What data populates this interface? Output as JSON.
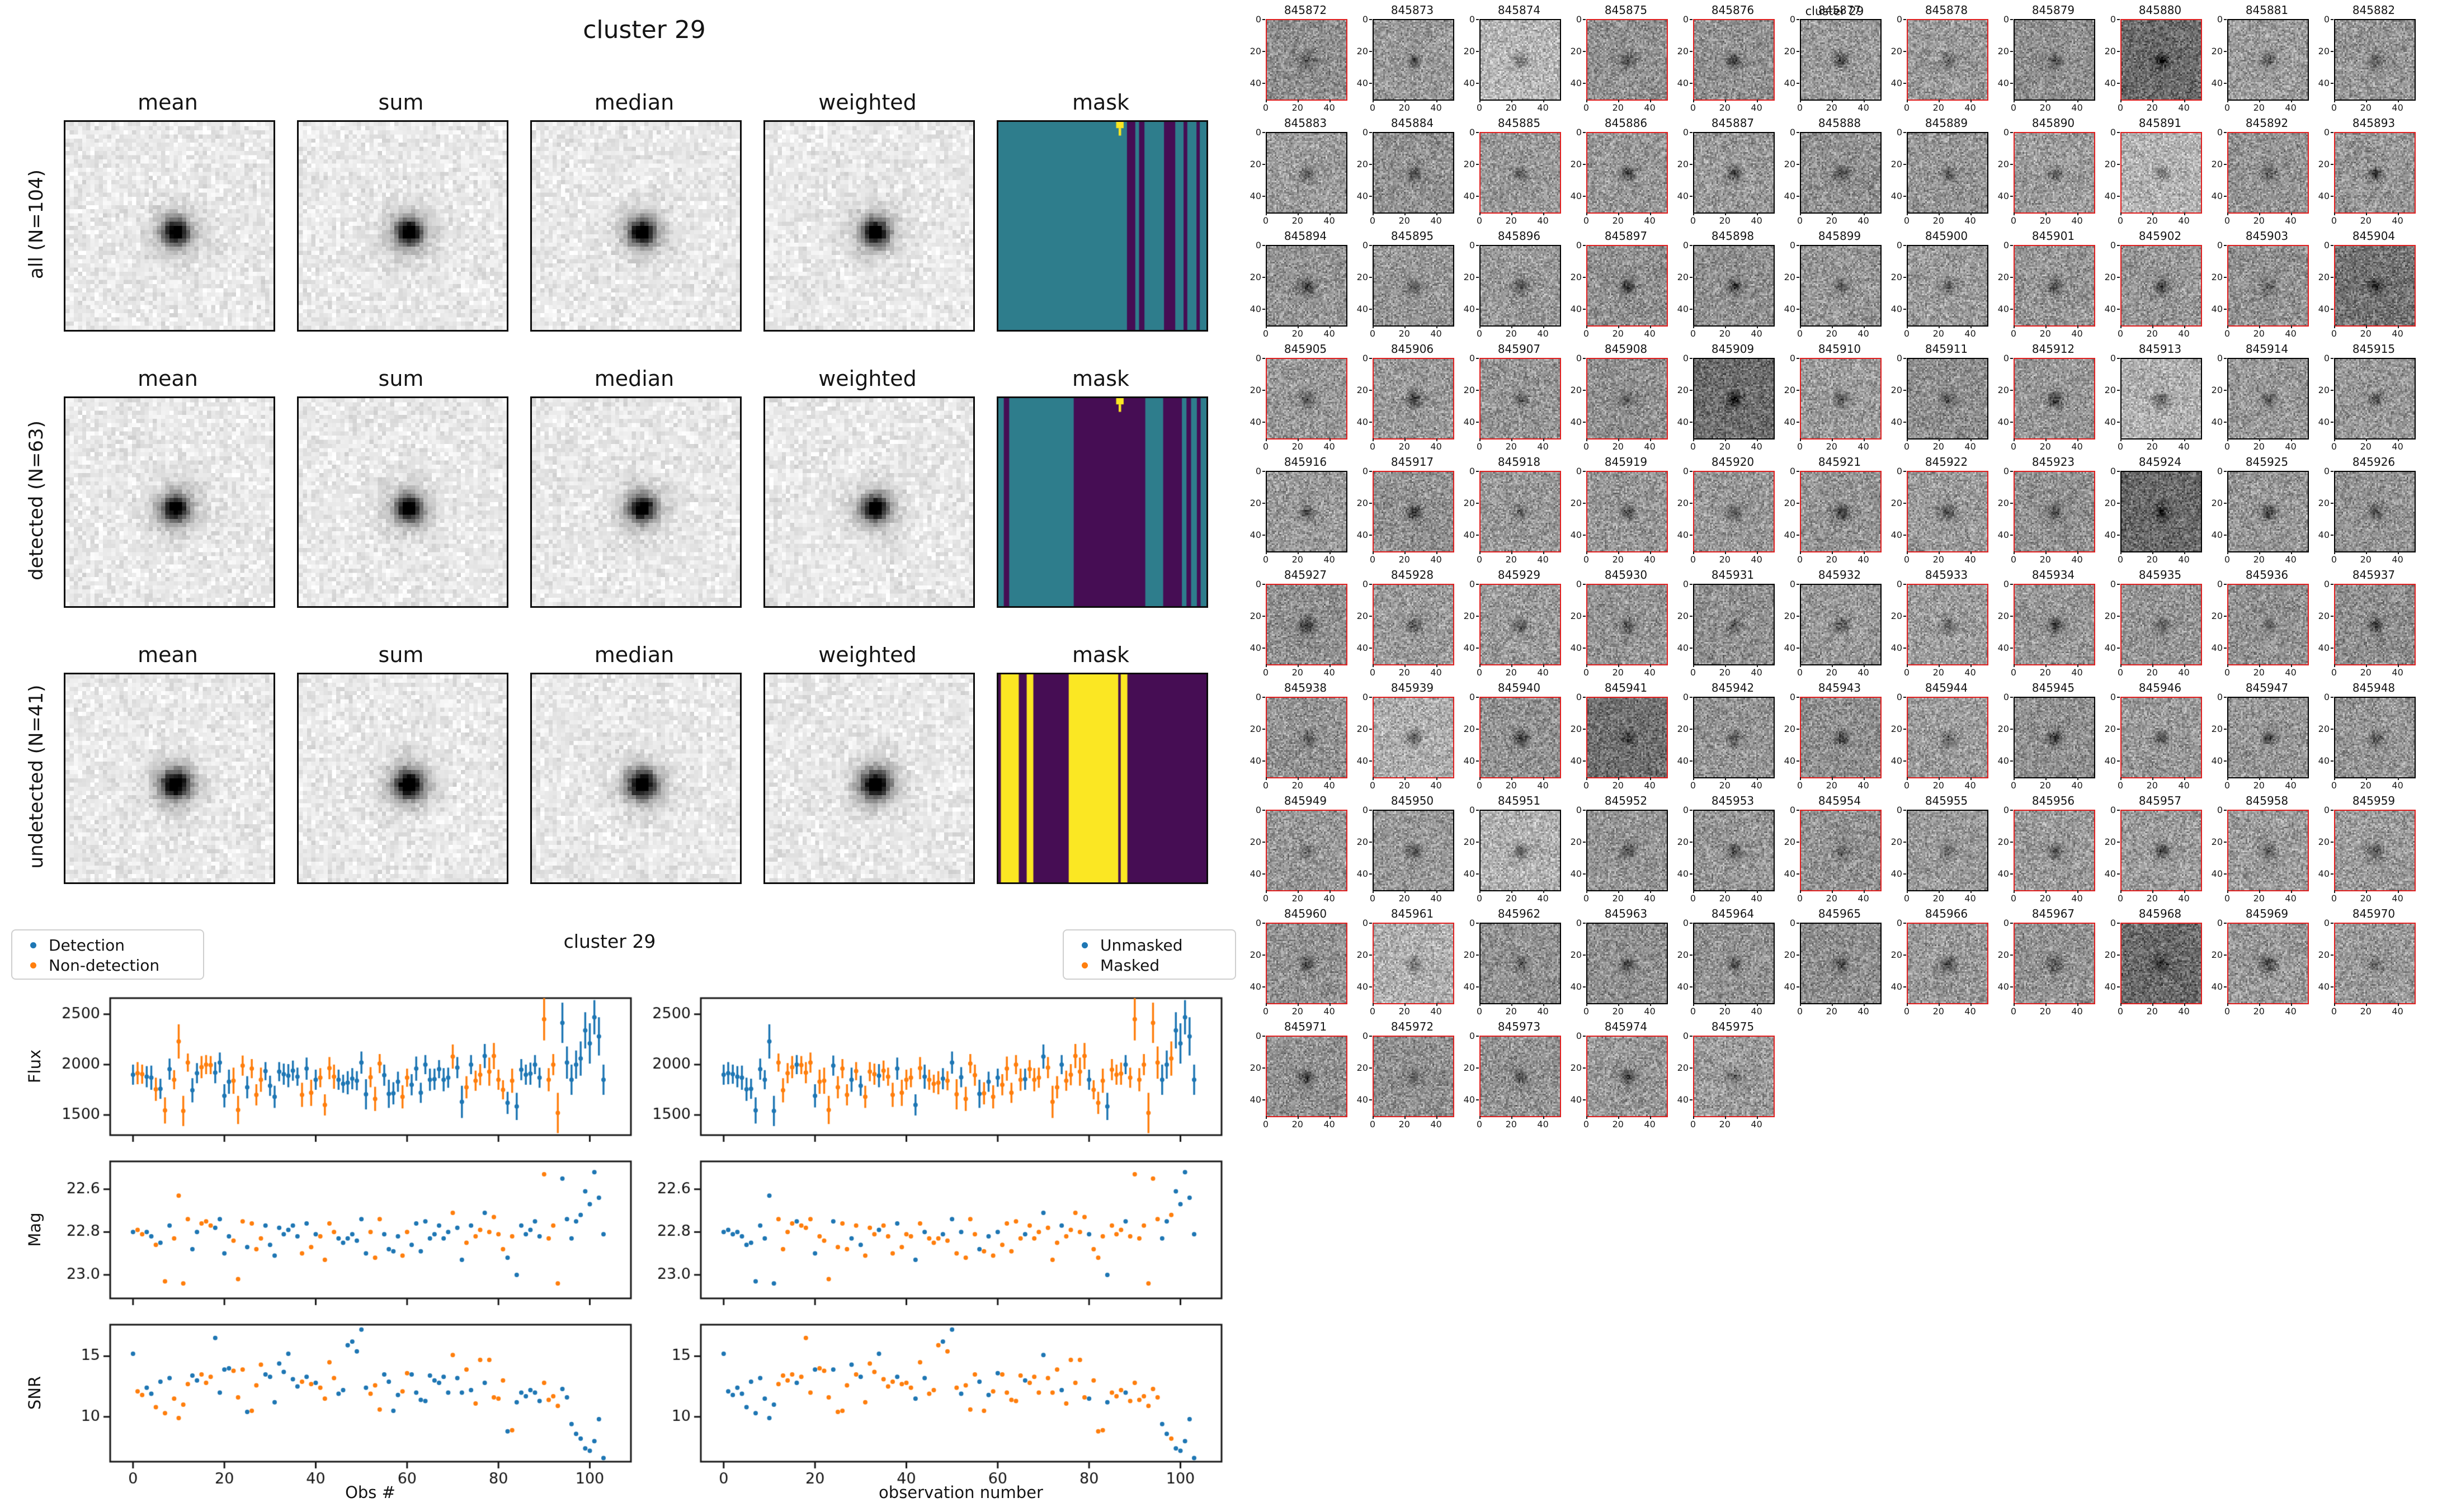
{
  "stack_figure": {
    "title": "cluster 29",
    "col_headers": [
      "mean",
      "sum",
      "median",
      "weighted",
      "mask"
    ],
    "rows": [
      {
        "label": "all (N=104)"
      },
      {
        "label": "detected (N=63)"
      },
      {
        "label": "undetected (N=41)"
      }
    ],
    "palette": {
      "teal": "#2e7d8c",
      "purple": "#460d54",
      "yellow": "#fbe723"
    },
    "masks": [
      {
        "bg": "teal",
        "stripe_color": "purple",
        "stripes": [
          [
            30.9,
            32.9
          ],
          [
            33.8,
            35.1
          ],
          [
            39.8,
            42.5
          ],
          [
            44.5,
            45.4
          ],
          [
            47.6,
            48.4
          ]
        ],
        "marker": true
      },
      {
        "bg": "teal",
        "stripe_color": "purple",
        "stripes": [
          [
            1.3,
            2.6
          ],
          [
            18.1,
            35.3
          ],
          [
            39.6,
            44.1
          ],
          [
            45.2,
            46.3
          ],
          [
            47.7,
            48.6
          ]
        ],
        "marker": true
      },
      {
        "bg": "purple",
        "stripe_color": "yellow",
        "stripes": [
          [
            0.6,
            4.9
          ],
          [
            6.8,
            8.4
          ],
          [
            16.9,
            28.8
          ],
          [
            29.4,
            31.0
          ]
        ],
        "marker": false
      }
    ],
    "noise": {
      "bg": 233,
      "noise": 14,
      "amp": 235,
      "sig": 2.1,
      "halo": 55,
      "hsig": 4.4
    }
  },
  "thumbnail_grid": {
    "suptitle": "cluster 29",
    "cols": 11,
    "ticks": [
      0,
      20,
      40
    ],
    "border_red": "#e01f1f",
    "border_black": "#000000",
    "noise": {
      "bg": 150,
      "noise": 30,
      "amp": 72,
      "sig": 2.7
    },
    "ids": [
      845872,
      845873,
      845874,
      845875,
      845876,
      845877,
      845878,
      845879,
      845880,
      845881,
      845882,
      845883,
      845884,
      845885,
      845886,
      845887,
      845888,
      845889,
      845890,
      845891,
      845892,
      845893,
      845894,
      845895,
      845896,
      845897,
      845898,
      845899,
      845900,
      845901,
      845902,
      845903,
      845904,
      845905,
      845906,
      845907,
      845908,
      845909,
      845910,
      845911,
      845912,
      845913,
      845914,
      845915,
      845916,
      845917,
      845918,
      845919,
      845920,
      845921,
      845922,
      845923,
      845924,
      845925,
      845926,
      845927,
      845928,
      845929,
      845930,
      845931,
      845932,
      845933,
      845934,
      845935,
      845936,
      845937,
      845938,
      845939,
      845940,
      845941,
      845942,
      845943,
      845944,
      845945,
      845946,
      845947,
      845948,
      845949,
      845950,
      845951,
      845952,
      845953,
      845954,
      845955,
      845956,
      845957,
      845958,
      845959,
      845960,
      845961,
      845962,
      845963,
      845964,
      845965,
      845966,
      845967,
      845968,
      845969,
      845970,
      845971,
      845972,
      845973,
      845974,
      845975
    ],
    "red": [
      1,
      0,
      0,
      1,
      1,
      0,
      1,
      0,
      1,
      0,
      0,
      0,
      0,
      1,
      1,
      0,
      0,
      0,
      1,
      1,
      1,
      1,
      0,
      0,
      0,
      1,
      0,
      0,
      0,
      1,
      1,
      1,
      1,
      1,
      1,
      1,
      1,
      0,
      1,
      0,
      1,
      0,
      0,
      0,
      0,
      1,
      1,
      1,
      1,
      1,
      1,
      1,
      0,
      0,
      0,
      1,
      1,
      1,
      1,
      0,
      0,
      1,
      1,
      1,
      1,
      1,
      1,
      1,
      1,
      1,
      0,
      1,
      1,
      0,
      1,
      0,
      0,
      1,
      0,
      0,
      0,
      0,
      1,
      0,
      1,
      1,
      1,
      1,
      1,
      1,
      0,
      0,
      0,
      0,
      1,
      1,
      1,
      1,
      1,
      1,
      1,
      1,
      1,
      1
    ],
    "dark_ids": [
      845880,
      845904,
      845909,
      845924,
      845941,
      845968
    ],
    "light_ids": [
      845874,
      845891,
      845913,
      845939,
      845951,
      845961
    ]
  },
  "chart_data": {
    "type": "scatter",
    "suptitle": "cluster 29",
    "x_is_index": true,
    "xlim": [
      -5,
      109
    ],
    "xticks": [
      0,
      20,
      40,
      60,
      80,
      100
    ],
    "colors": {
      "blue": "#1f77b4",
      "orange": "#ff7f0e"
    },
    "columns": [
      {
        "name": "left",
        "legend": [
          {
            "label": "Detection",
            "color": "blue"
          },
          {
            "label": "Non-detection",
            "color": "orange"
          }
        ],
        "xlabel": "Obs #",
        "flag_key": "detected",
        "flag_colors": {
          "0": "orange",
          "1": "blue"
        }
      },
      {
        "name": "right",
        "legend": [
          {
            "label": "Unmasked",
            "color": "blue"
          },
          {
            "label": "Masked",
            "color": "orange"
          }
        ],
        "xlabel": "observation number",
        "flag_key": "masked",
        "flag_colors": {
          "0": "blue",
          "1": "orange"
        }
      }
    ],
    "rows": [
      {
        "ylabel": "Flux",
        "ytick_values": [
          1500,
          2000,
          2500
        ],
        "ytick_labels": [
          "1500",
          "2000",
          "2500"
        ],
        "ybottom": 1300,
        "ytop": 2660,
        "errorbars": true,
        "values_key": "flux"
      },
      {
        "ylabel": "Mag",
        "ytick_values": [
          22.6,
          22.8,
          23.0
        ],
        "ytick_labels": [
          "22.6",
          "22.8",
          "23.0"
        ],
        "ybottom": 23.11,
        "ytop": 22.47,
        "errorbars": false,
        "values_key": "mag"
      },
      {
        "ylabel": "SNR",
        "ytick_values": [
          10,
          15
        ],
        "ytick_labels": [
          "10",
          "15"
        ],
        "ybottom": 6.3,
        "ytop": 17.6,
        "errorbars": false,
        "values_key": "snr"
      }
    ],
    "flux": [
      1900,
      1915,
      1905,
      1880,
      1870,
      1755,
      1760,
      1545,
      1955,
      1850,
      2230,
      1540,
      2020,
      1745,
      1915,
      1975,
      2000,
      1995,
      1920,
      2020,
      1690,
      1830,
      1840,
      1550,
      1990,
      1775,
      1960,
      1700,
      1850,
      1935,
      1790,
      1680,
      1930,
      1905,
      1890,
      1940,
      1880,
      1700,
      1960,
      1720,
      1850,
      1870,
      1600,
      1965,
      1880,
      1850,
      1810,
      1820,
      1860,
      1840,
      2020,
      1705,
      1875,
      1660,
      2010,
      1895,
      1710,
      1715,
      1830,
      1680,
      1870,
      1800,
      1960,
      1720,
      2000,
      1850,
      1855,
      1955,
      1850,
      1870,
      2080,
      1970,
      1630,
      1775,
      2000,
      1840,
      1900,
      2085,
      1930,
      2085,
      1850,
      1750,
      1620,
      1840,
      1585,
      1950,
      1900,
      1910,
      2000,
      1870,
      2450,
      1850,
      2000,
      1520,
      2415,
      2020,
      1850,
      2000,
      2060,
      2340,
      2210,
      2470,
      2280,
      1850
    ],
    "flux_err": [
      100,
      110,
      95,
      105,
      120,
      115,
      100,
      130,
      105,
      95,
      170,
      150,
      90,
      120,
      100,
      110,
      95,
      90,
      105,
      100,
      115,
      120,
      130,
      140,
      100,
      110,
      95,
      105,
      120,
      90,
      100,
      110,
      95,
      105,
      115,
      100,
      90,
      120,
      110,
      130,
      100,
      95,
      105,
      110,
      120,
      100,
      90,
      115,
      105,
      95,
      110,
      150,
      100,
      120,
      95,
      105,
      140,
      110,
      100,
      115,
      90,
      105,
      120,
      100,
      95,
      110,
      105,
      90,
      115,
      100,
      120,
      105,
      160,
      110,
      95,
      100,
      105,
      120,
      140,
      130,
      100,
      95,
      110,
      120,
      135,
      105,
      100,
      110,
      95,
      100,
      210,
      115,
      105,
      200,
      200,
      160,
      150,
      140,
      170,
      180,
      200,
      170,
      190,
      150
    ],
    "mag": [
      22.8,
      22.79,
      22.81,
      22.8,
      22.82,
      22.86,
      22.85,
      23.03,
      22.77,
      22.83,
      22.63,
      23.04,
      22.74,
      22.88,
      22.8,
      22.76,
      22.75,
      22.77,
      22.78,
      22.74,
      22.9,
      22.82,
      22.84,
      23.02,
      22.75,
      22.87,
      22.76,
      22.88,
      22.83,
      22.77,
      22.86,
      22.91,
      22.78,
      22.81,
      22.79,
      22.77,
      22.82,
      22.9,
      22.76,
      22.87,
      22.81,
      22.82,
      22.93,
      22.76,
      22.8,
      22.83,
      22.85,
      22.83,
      22.81,
      22.84,
      22.74,
      22.9,
      22.8,
      22.92,
      22.74,
      22.81,
      22.88,
      22.89,
      22.82,
      22.91,
      22.8,
      22.86,
      22.76,
      22.89,
      22.75,
      22.83,
      22.81,
      22.77,
      22.83,
      22.8,
      22.71,
      22.78,
      22.93,
      22.85,
      22.77,
      22.82,
      22.79,
      22.71,
      22.8,
      22.73,
      22.81,
      22.88,
      22.92,
      22.82,
      23.0,
      22.77,
      22.81,
      22.79,
      22.75,
      22.82,
      22.53,
      22.83,
      22.77,
      23.04,
      22.55,
      22.74,
      22.83,
      22.75,
      22.72,
      22.61,
      22.67,
      22.52,
      22.64,
      22.81
    ],
    "snr": [
      15.2,
      12.1,
      11.8,
      12.4,
      11.9,
      10.8,
      12.9,
      10.3,
      13.2,
      11.5,
      9.9,
      11.0,
      12.7,
      13.4,
      13.0,
      13.5,
      12.8,
      13.3,
      16.5,
      12.0,
      13.9,
      14.0,
      13.8,
      11.6,
      13.9,
      10.4,
      10.5,
      12.6,
      14.3,
      13.5,
      13.3,
      11.2,
      14.4,
      13.7,
      15.2,
      13.1,
      12.5,
      12.9,
      13.3,
      12.7,
      12.8,
      12.4,
      11.5,
      14.5,
      13.2,
      11.9,
      12.2,
      15.9,
      16.2,
      15.4,
      17.2,
      12.4,
      11.9,
      12.6,
      10.6,
      13.5,
      12.9,
      10.5,
      11.8,
      12.1,
      13.6,
      13.5,
      12.0,
      11.4,
      11.3,
      13.4,
      13.0,
      12.8,
      13.3,
      12.0,
      15.1,
      13.2,
      12.0,
      13.9,
      12.2,
      11.1,
      14.7,
      12.8,
      14.7,
      11.6,
      11.5,
      13.0,
      8.8,
      8.9,
      11.2,
      12.0,
      11.7,
      12.2,
      12.0,
      11.3,
      12.8,
      11.4,
      11.7,
      10.9,
      12.3,
      11.6,
      9.4,
      8.6,
      8.2,
      7.4,
      7.2,
      8.0,
      9.8,
      6.6
    ],
    "detected": [
      1,
      0,
      0,
      1,
      1,
      0,
      1,
      0,
      1,
      0,
      0,
      0,
      0,
      1,
      1,
      0,
      0,
      0,
      1,
      1,
      1,
      1,
      0,
      0,
      0,
      1,
      0,
      0,
      0,
      1,
      1,
      1,
      1,
      1,
      1,
      1,
      1,
      0,
      1,
      0,
      1,
      0,
      0,
      0,
      0,
      1,
      1,
      1,
      1,
      1,
      1,
      1,
      0,
      0,
      0,
      1,
      1,
      1,
      1,
      0,
      0,
      1,
      1,
      1,
      1,
      1,
      1,
      1,
      1,
      1,
      0,
      1,
      1,
      0,
      1,
      0,
      0,
      1,
      0,
      0,
      0,
      0,
      1,
      0,
      1,
      1,
      1,
      1,
      1,
      1,
      0,
      0,
      0,
      0,
      1,
      1,
      1,
      1,
      1,
      1,
      1,
      1,
      1,
      1
    ],
    "masked": [
      0,
      0,
      0,
      0,
      0,
      0,
      0,
      0,
      0,
      0,
      0,
      0,
      1,
      1,
      1,
      1,
      0,
      1,
      1,
      1,
      0,
      1,
      1,
      1,
      0,
      1,
      1,
      1,
      0,
      1,
      0,
      1,
      1,
      1,
      0,
      1,
      1,
      1,
      0,
      1,
      1,
      1,
      0,
      1,
      0,
      1,
      1,
      1,
      0,
      1,
      0,
      1,
      0,
      1,
      1,
      1,
      0,
      1,
      0,
      1,
      0,
      1,
      1,
      1,
      1,
      1,
      0,
      1,
      1,
      1,
      0,
      1,
      1,
      1,
      0,
      1,
      1,
      1,
      1,
      1,
      0,
      1,
      1,
      1,
      0,
      1,
      1,
      1,
      0,
      1,
      1,
      1,
      1,
      1,
      1,
      1,
      0,
      0,
      1,
      0,
      0,
      0,
      0,
      0,
      0
    ]
  }
}
